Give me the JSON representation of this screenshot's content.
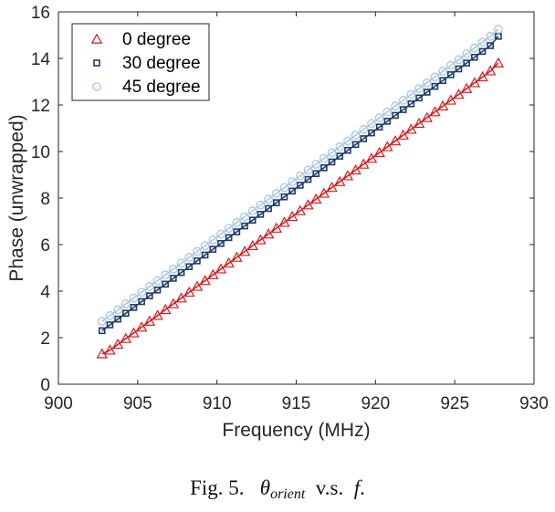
{
  "caption": {
    "prefix": "Fig. 5.",
    "theta": "θ",
    "sub": "orient",
    "vs": "v.s.",
    "f": "f",
    "period": "."
  },
  "chart_data": {
    "type": "scatter",
    "xlabel": "Frequency (MHz)",
    "ylabel": "Phase (unwrapped)",
    "xlim": [
      900,
      930
    ],
    "ylim": [
      0,
      16
    ],
    "xticks": [
      900,
      905,
      910,
      915,
      920,
      925,
      930
    ],
    "yticks": [
      0,
      2,
      4,
      6,
      8,
      10,
      12,
      14,
      16
    ],
    "grid": false,
    "legend_position": "top-left",
    "x_start": 902.75,
    "x_step": 0.5,
    "series": [
      {
        "name": "0 degree",
        "marker": "triangle",
        "color": "#d7191c",
        "values": [
          1.3,
          1.46,
          1.71,
          1.96,
          2.2,
          2.45,
          2.7,
          2.95,
          3.2,
          3.45,
          3.7,
          3.95,
          4.2,
          4.45,
          4.7,
          4.95,
          5.2,
          5.45,
          5.7,
          5.95,
          6.2,
          6.45,
          6.7,
          6.95,
          7.2,
          7.45,
          7.7,
          7.95,
          8.2,
          8.45,
          8.7,
          8.95,
          9.2,
          9.45,
          9.7,
          9.95,
          10.2,
          10.45,
          10.7,
          10.95,
          11.2,
          11.45,
          11.7,
          11.95,
          12.2,
          12.45,
          12.7,
          12.95,
          13.2,
          13.46,
          13.8
        ]
      },
      {
        "name": "30 degree",
        "marker": "square",
        "color": "#1f3a6b",
        "values": [
          2.3,
          2.55,
          2.8,
          3.05,
          3.3,
          3.55,
          3.8,
          4.05,
          4.3,
          4.55,
          4.8,
          5.05,
          5.3,
          5.55,
          5.8,
          6.05,
          6.3,
          6.55,
          6.8,
          7.05,
          7.3,
          7.55,
          7.8,
          8.05,
          8.3,
          8.55,
          8.8,
          9.05,
          9.3,
          9.55,
          9.8,
          10.05,
          10.3,
          10.55,
          10.8,
          11.05,
          11.3,
          11.55,
          11.8,
          12.05,
          12.3,
          12.55,
          12.8,
          13.05,
          13.3,
          13.55,
          13.8,
          14.05,
          14.3,
          14.55,
          14.95
        ]
      },
      {
        "name": "45 degree",
        "marker": "circle",
        "color": "#a9c6e2",
        "values": [
          2.7,
          2.95,
          3.2,
          3.45,
          3.7,
          3.95,
          4.2,
          4.45,
          4.7,
          4.95,
          5.2,
          5.45,
          5.7,
          5.95,
          6.2,
          6.45,
          6.7,
          6.95,
          7.2,
          7.45,
          7.7,
          7.95,
          8.2,
          8.45,
          8.7,
          8.95,
          9.2,
          9.45,
          9.7,
          9.95,
          10.2,
          10.45,
          10.7,
          10.95,
          11.2,
          11.45,
          11.7,
          11.95,
          12.2,
          12.45,
          12.7,
          12.95,
          13.2,
          13.45,
          13.7,
          13.95,
          14.2,
          14.45,
          14.7,
          14.95,
          15.25
        ]
      }
    ]
  }
}
